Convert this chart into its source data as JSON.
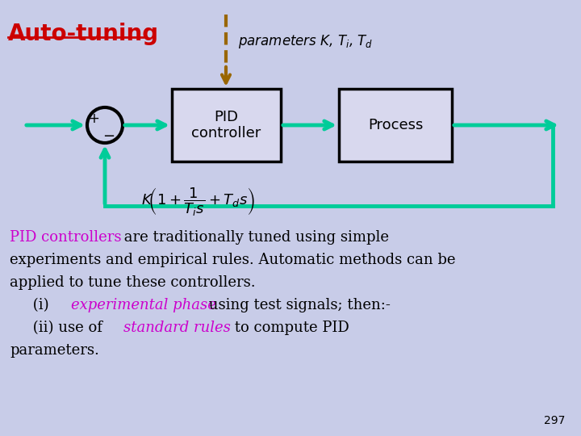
{
  "bg_color": "#c8cce8",
  "title": "Auto-tuning",
  "title_color": "#cc0000",
  "params_text": "parameters K, T_i, T_d",
  "pid_box_label": "PID\ncontroller",
  "process_box_label": "Process",
  "arrow_color": "#00cc99",
  "dashed_arrow_color": "#996600",
  "black_text_color": "#000000",
  "magenta_color": "#cc00cc",
  "page_number": "297",
  "fig_width": 7.2,
  "fig_height": 5.4,
  "dpi": 100
}
